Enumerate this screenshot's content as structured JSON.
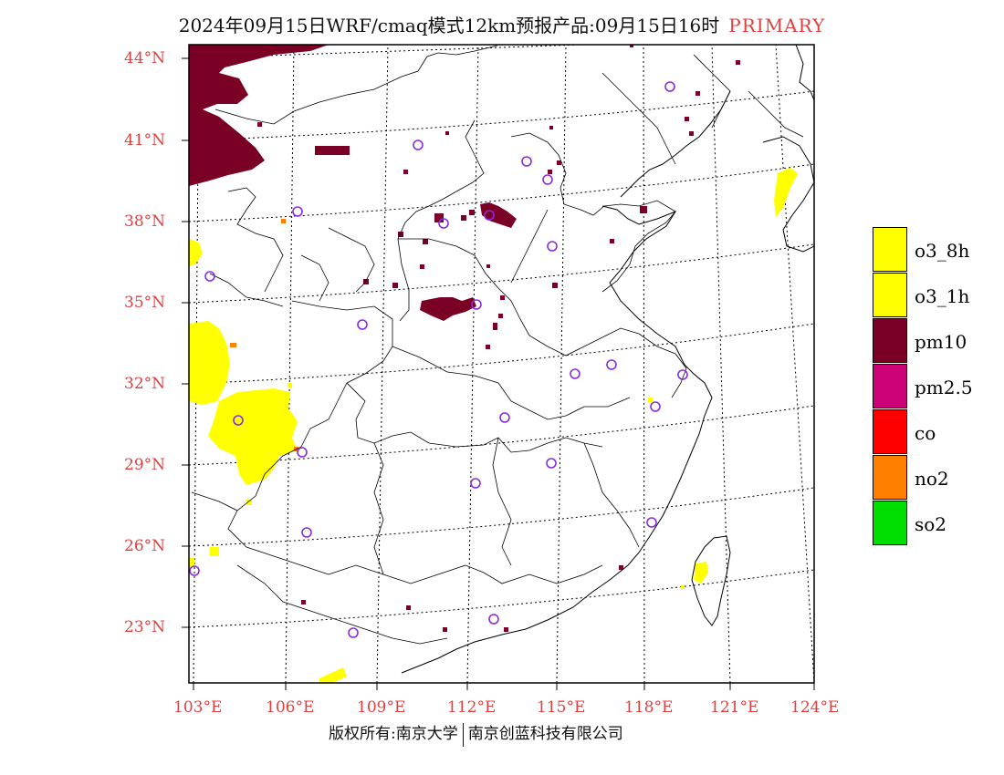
{
  "title": "2024年09月15日WRF/cmaq模式12km预报产品:09月15日16时",
  "title_tag": "PRIMARY",
  "latitude_labels": [
    "44°N",
    "41°N",
    "38°N",
    "35°N",
    "32°N",
    "29°N",
    "26°N",
    "23°N"
  ],
  "longitude_labels": [
    "103°E",
    "106°E",
    "109°E",
    "112°E",
    "115°E",
    "118°E",
    "121°E",
    "124°E"
  ],
  "footer": {
    "left": "版权所有:南京大学",
    "right": "南京创蓝科技有限公司"
  },
  "legend": [
    {
      "label": "o3_8h",
      "color": "#ffff00"
    },
    {
      "label": "o3_1h",
      "color": "#ffff00"
    },
    {
      "label": "pm10",
      "color": "#7a0026"
    },
    {
      "label": "pm2.5",
      "color": "#cc0077"
    },
    {
      "label": "co",
      "color": "#ff0000"
    },
    {
      "label": "no2",
      "color": "#ff8000"
    },
    {
      "label": "so2",
      "color": "#00dd00"
    }
  ],
  "colors": {
    "o3": "#ffff00",
    "pm10": "#7a0026",
    "no2": "#ff8000",
    "station_marker": "#8a2be2",
    "label_red": "#e04040"
  }
}
